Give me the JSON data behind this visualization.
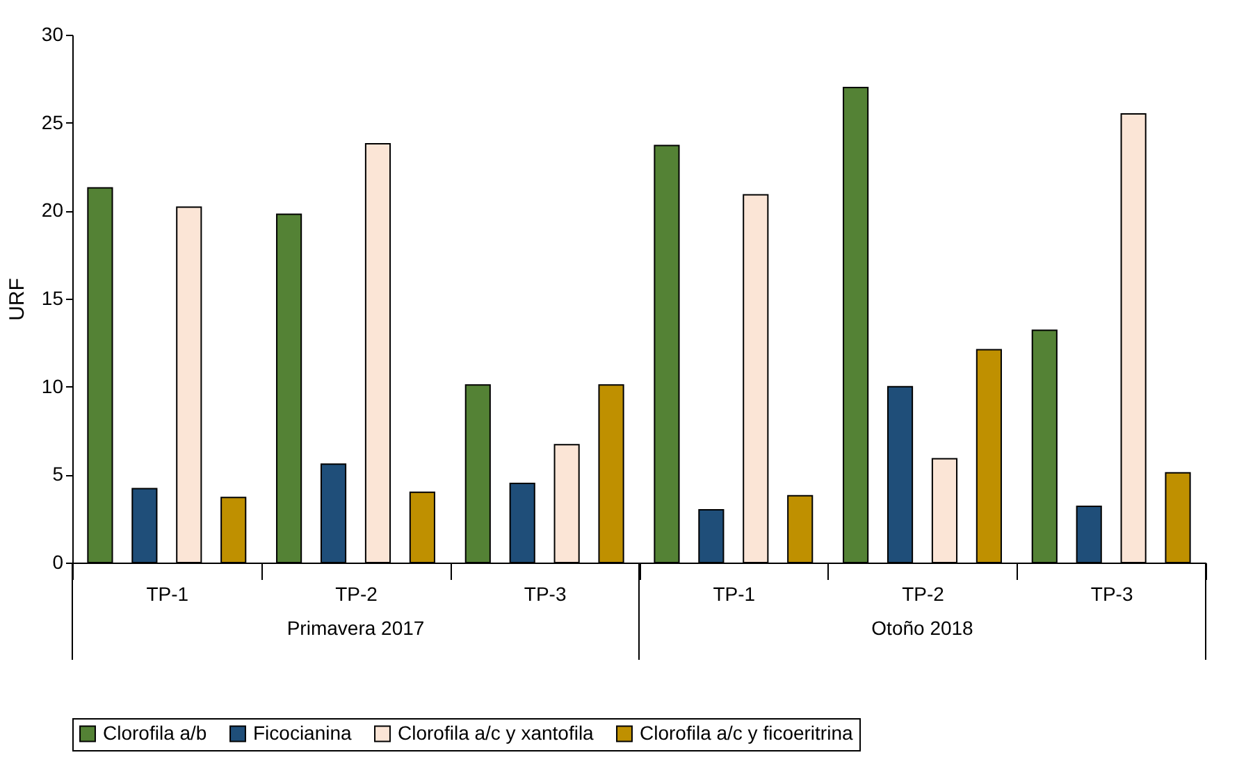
{
  "chart_data": {
    "type": "bar",
    "ylabel": "URF",
    "categories": [
      "TP-1",
      "TP-2",
      "TP-3",
      "TP-1",
      "TP-2",
      "TP-3"
    ],
    "annotations": [
      "Primavera 2017",
      "Otoño 2018"
    ],
    "series": [
      {
        "name": "Clorofila a/b",
        "color": "#548235",
        "values": [
          21.3,
          19.8,
          10.1,
          23.7,
          27.0,
          13.2
        ]
      },
      {
        "name": "Ficocianina",
        "color": "#1f4e79",
        "values": [
          4.2,
          5.6,
          4.5,
          3.0,
          10.0,
          3.2
        ]
      },
      {
        "name": "Clorofila a/c y xantofila",
        "color": "#fbe5d6",
        "values": [
          20.2,
          23.8,
          6.7,
          20.9,
          5.9,
          25.5
        ]
      },
      {
        "name": "Clorofila a/c y ficoeritrina",
        "color": "#bf9000",
        "values": [
          3.7,
          4.0,
          10.1,
          3.8,
          12.1,
          5.1
        ]
      }
    ],
    "ylim": [
      0,
      30
    ],
    "yticks": [
      0,
      5,
      10,
      15,
      20,
      25,
      30
    ],
    "grid": false,
    "legend": "bottom"
  }
}
